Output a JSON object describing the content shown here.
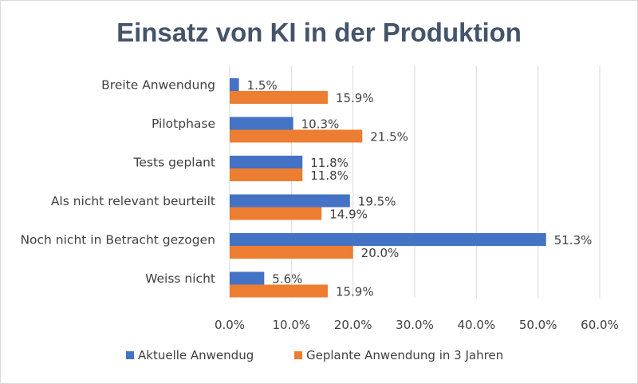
{
  "chart_data": {
    "type": "bar",
    "orientation": "horizontal",
    "title": "Einsatz von KI in der Produktion",
    "categories": [
      "Breite Anwendung",
      "Pilotphase",
      "Tests geplant",
      "Als nicht relevant beurteilt",
      "Noch nicht in Betracht gezogen",
      "Weiss nicht"
    ],
    "series": [
      {
        "name": "Aktuelle Anwendug",
        "color": "#4472c4",
        "values": [
          1.5,
          10.3,
          11.8,
          19.5,
          51.3,
          5.6
        ],
        "labels": [
          "1.5%",
          "10.3%",
          "11.8%",
          "19.5%",
          "51.3%",
          "5.6%"
        ]
      },
      {
        "name": "Geplante Anwendung in 3 Jahren",
        "color": "#ed7d31",
        "values": [
          15.9,
          21.5,
          11.8,
          14.9,
          20.0,
          15.9
        ],
        "labels": [
          "15.9%",
          "21.5%",
          "11.8%",
          "14.9%",
          "20.0%",
          "15.9%"
        ]
      }
    ],
    "xlim": [
      0,
      60
    ],
    "xticks": [
      0,
      10,
      20,
      30,
      40,
      50,
      60
    ],
    "xtick_labels": [
      "0.0%",
      "10.0%",
      "20.0%",
      "30.0%",
      "40.0%",
      "50.0%",
      "60.0%"
    ],
    "xlabel": "",
    "ylabel": "",
    "grid": true,
    "legend_position": "bottom"
  }
}
